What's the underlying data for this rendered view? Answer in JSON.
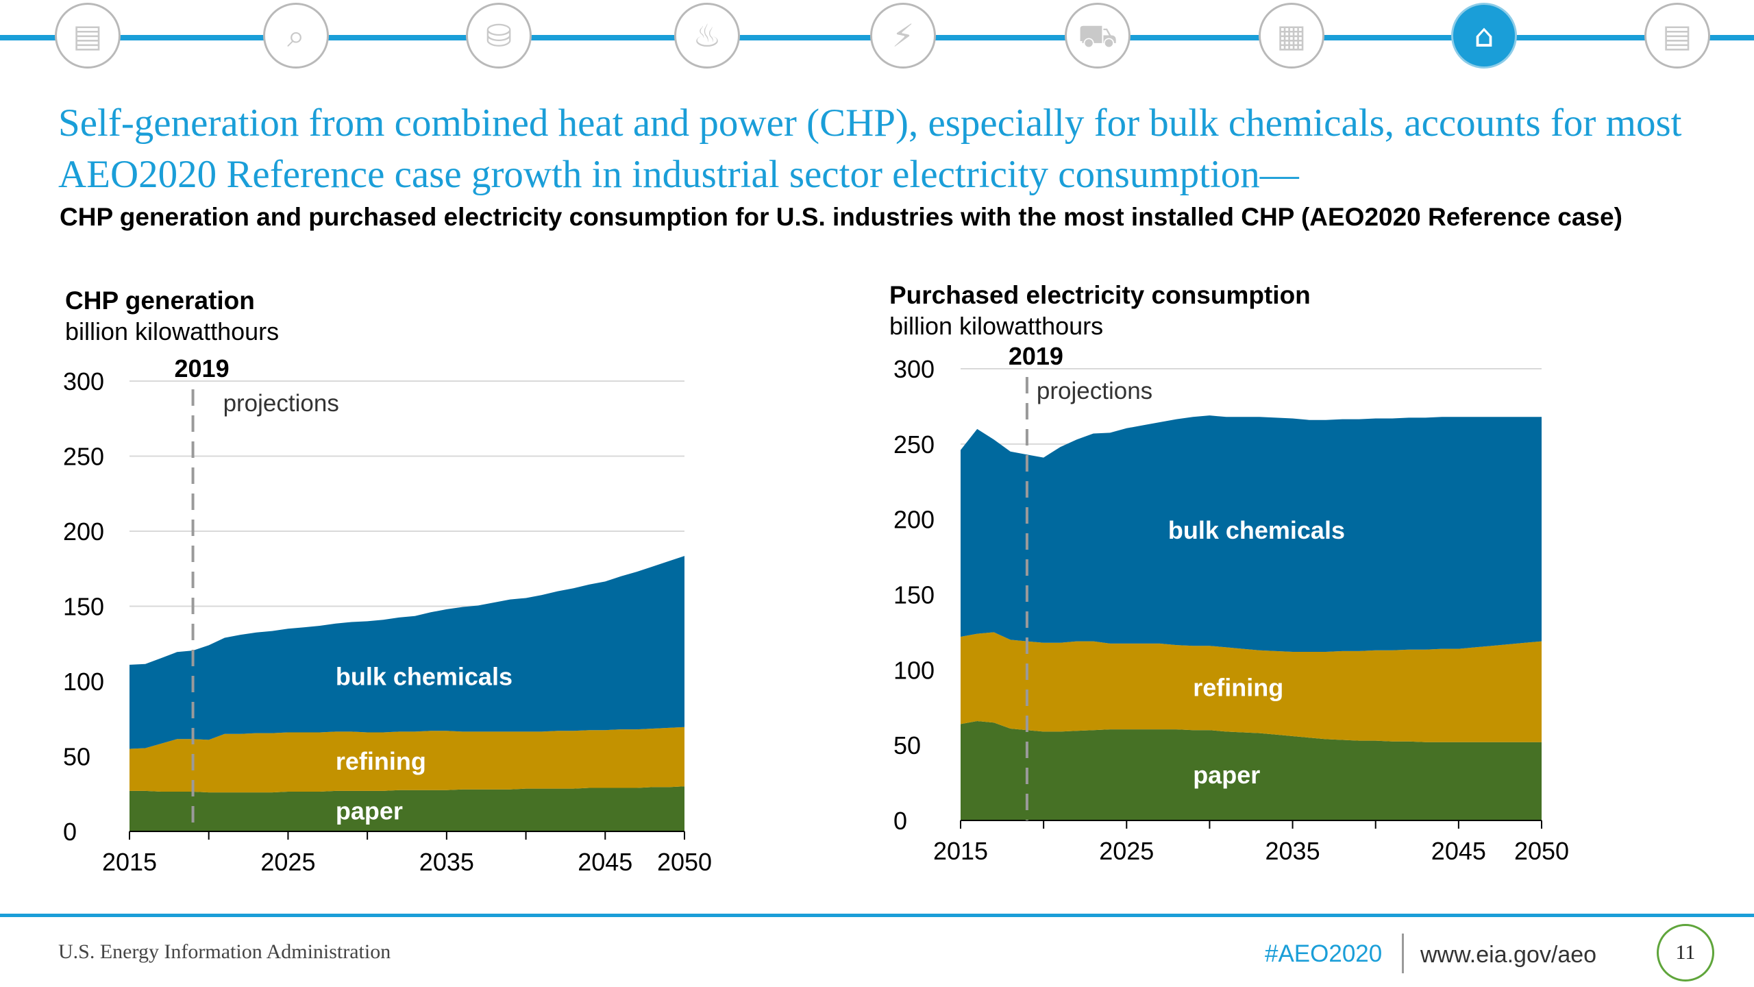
{
  "nav": {
    "icons": [
      {
        "name": "overview-icon",
        "glyph": "▤",
        "active": false
      },
      {
        "name": "analysis-icon",
        "glyph": "⌕",
        "active": false
      },
      {
        "name": "petroleum-icon",
        "glyph": "⛁",
        "active": false
      },
      {
        "name": "natural-gas-icon",
        "glyph": "♨",
        "active": false
      },
      {
        "name": "electricity-icon",
        "glyph": "⚡",
        "active": false
      },
      {
        "name": "transportation-icon",
        "glyph": "⛟",
        "active": false
      },
      {
        "name": "buildings-icon",
        "glyph": "▦",
        "active": false
      },
      {
        "name": "industrial-icon",
        "glyph": "⌂",
        "active": true
      },
      {
        "name": "documents-icon",
        "glyph": "▤",
        "active": false
      }
    ]
  },
  "title": "Self-generation from combined heat and power (CHP), especially for bulk chemicals, accounts for most AEO2020 Reference case growth in industrial sector electricity consumption—",
  "subtitle": "CHP generation and purchased electricity consumption for U.S. industries with the most installed CHP (AEO2020 Reference case)",
  "colors": {
    "paper": "#467125",
    "refining": "#c39200",
    "bulk_chemicals": "#00699e",
    "accent": "#1a9ed8",
    "grid": "#d9d9d9",
    "marker": "#9a9a9a"
  },
  "chart_data": [
    {
      "type": "area",
      "stacked": true,
      "title": "CHP generation",
      "ylabel": "billion kilowatthours",
      "ylim": [
        0,
        300
      ],
      "yticks": [
        0,
        50,
        100,
        150,
        200,
        250,
        300
      ],
      "xlim": [
        2015,
        2050
      ],
      "xtick_labels": [
        "2015",
        "2025",
        "2035",
        "2045",
        "2050"
      ],
      "xtick_values": [
        2015,
        2025,
        2035,
        2045,
        2050
      ],
      "minor_ticks": [
        2020,
        2030,
        2040
      ],
      "marker": {
        "year": 2019,
        "label": "2019",
        "note": "projections"
      },
      "x": [
        2015,
        2016,
        2017,
        2018,
        2019,
        2020,
        2021,
        2022,
        2023,
        2024,
        2025,
        2026,
        2027,
        2028,
        2029,
        2030,
        2031,
        2032,
        2033,
        2034,
        2035,
        2036,
        2037,
        2038,
        2039,
        2040,
        2041,
        2042,
        2043,
        2044,
        2045,
        2046,
        2047,
        2048,
        2049,
        2050
      ],
      "series": [
        {
          "name": "paper",
          "values": [
            27,
            27,
            26.5,
            26.5,
            26.5,
            26,
            26,
            26,
            26,
            26,
            26.5,
            26.5,
            26.5,
            27,
            27,
            27,
            27,
            27.5,
            27.5,
            27.5,
            27.5,
            28,
            28,
            28,
            28,
            28.5,
            28.5,
            28.5,
            28.5,
            29,
            29,
            29,
            29,
            29.5,
            29.5,
            30
          ]
        },
        {
          "name": "refining",
          "values": [
            28,
            28.5,
            32,
            35,
            35,
            35,
            39,
            39,
            39.5,
            39.5,
            39.5,
            39.5,
            39.5,
            39.5,
            39.5,
            39,
            39,
            39,
            39,
            39.5,
            39.5,
            38.5,
            38.5,
            38.5,
            38.5,
            38,
            38,
            38.5,
            38.5,
            38.5,
            38.5,
            39,
            39,
            39,
            39.5,
            39.5
          ]
        },
        {
          "name": "bulk chemicals",
          "values": [
            56,
            56,
            57,
            58,
            59,
            63,
            64,
            66,
            67,
            68,
            69,
            70,
            71,
            72,
            73,
            74,
            75,
            76,
            77,
            79,
            81,
            83,
            84,
            86,
            88,
            89,
            91,
            93,
            95,
            97,
            99,
            102,
            105,
            108,
            111,
            114
          ]
        }
      ],
      "labels": [
        {
          "series": "bulk chemicals",
          "text": "bulk chemicals"
        },
        {
          "series": "refining",
          "text": "refining"
        },
        {
          "series": "paper",
          "text": "paper"
        }
      ]
    },
    {
      "type": "area",
      "stacked": true,
      "title": "Purchased electricity consumption",
      "ylabel": "billion kilowatthours",
      "ylim": [
        0,
        300
      ],
      "yticks": [
        0,
        50,
        100,
        150,
        200,
        250,
        300
      ],
      "xlim": [
        2015,
        2050
      ],
      "xtick_labels": [
        "2015",
        "2025",
        "2035",
        "2045",
        "2050"
      ],
      "xtick_values": [
        2015,
        2025,
        2035,
        2045,
        2050
      ],
      "minor_ticks": [
        2020,
        2030,
        2040
      ],
      "marker": {
        "year": 2019,
        "label": "2019",
        "note": "projections"
      },
      "x": [
        2015,
        2016,
        2017,
        2018,
        2019,
        2020,
        2021,
        2022,
        2023,
        2024,
        2025,
        2026,
        2027,
        2028,
        2029,
        2030,
        2031,
        2032,
        2033,
        2034,
        2035,
        2036,
        2037,
        2038,
        2039,
        2040,
        2041,
        2042,
        2043,
        2044,
        2045,
        2046,
        2047,
        2048,
        2049,
        2050
      ],
      "series": [
        {
          "name": "paper",
          "values": [
            64,
            66,
            65,
            61,
            60,
            59,
            59,
            59.5,
            60,
            60.5,
            60.5,
            60.5,
            60.5,
            60.5,
            60,
            60,
            59,
            58.5,
            58,
            57,
            56,
            55,
            54,
            53.5,
            53,
            53,
            52.5,
            52.5,
            52,
            52,
            52,
            52,
            52,
            52,
            52,
            52
          ]
        },
        {
          "name": "refining",
          "values": [
            58,
            58,
            60,
            59,
            59,
            59,
            59,
            59.5,
            59,
            57,
            57,
            57,
            57,
            56,
            56,
            56,
            56,
            55.5,
            55,
            55.5,
            56,
            57,
            58,
            59,
            59.5,
            60,
            60.5,
            61,
            61.5,
            62,
            62,
            63,
            64,
            65,
            66,
            67
          ]
        },
        {
          "name": "bulk chemicals",
          "values": [
            124,
            136,
            128,
            125,
            124,
            123,
            130,
            134,
            138,
            140,
            143,
            145,
            147,
            150,
            152,
            153,
            153,
            154,
            155,
            155,
            155,
            154,
            154,
            154,
            154,
            154,
            154,
            154,
            154,
            154,
            154,
            153,
            152,
            151,
            150,
            149
          ]
        }
      ],
      "labels": [
        {
          "series": "bulk chemicals",
          "text": "bulk chemicals"
        },
        {
          "series": "refining",
          "text": "refining"
        },
        {
          "series": "paper",
          "text": "paper"
        }
      ]
    }
  ],
  "footer": {
    "source": "U.S. Energy Information Administration",
    "hashtag": "#AEO2020",
    "url": "www.eia.gov/aeo",
    "page": "11"
  }
}
